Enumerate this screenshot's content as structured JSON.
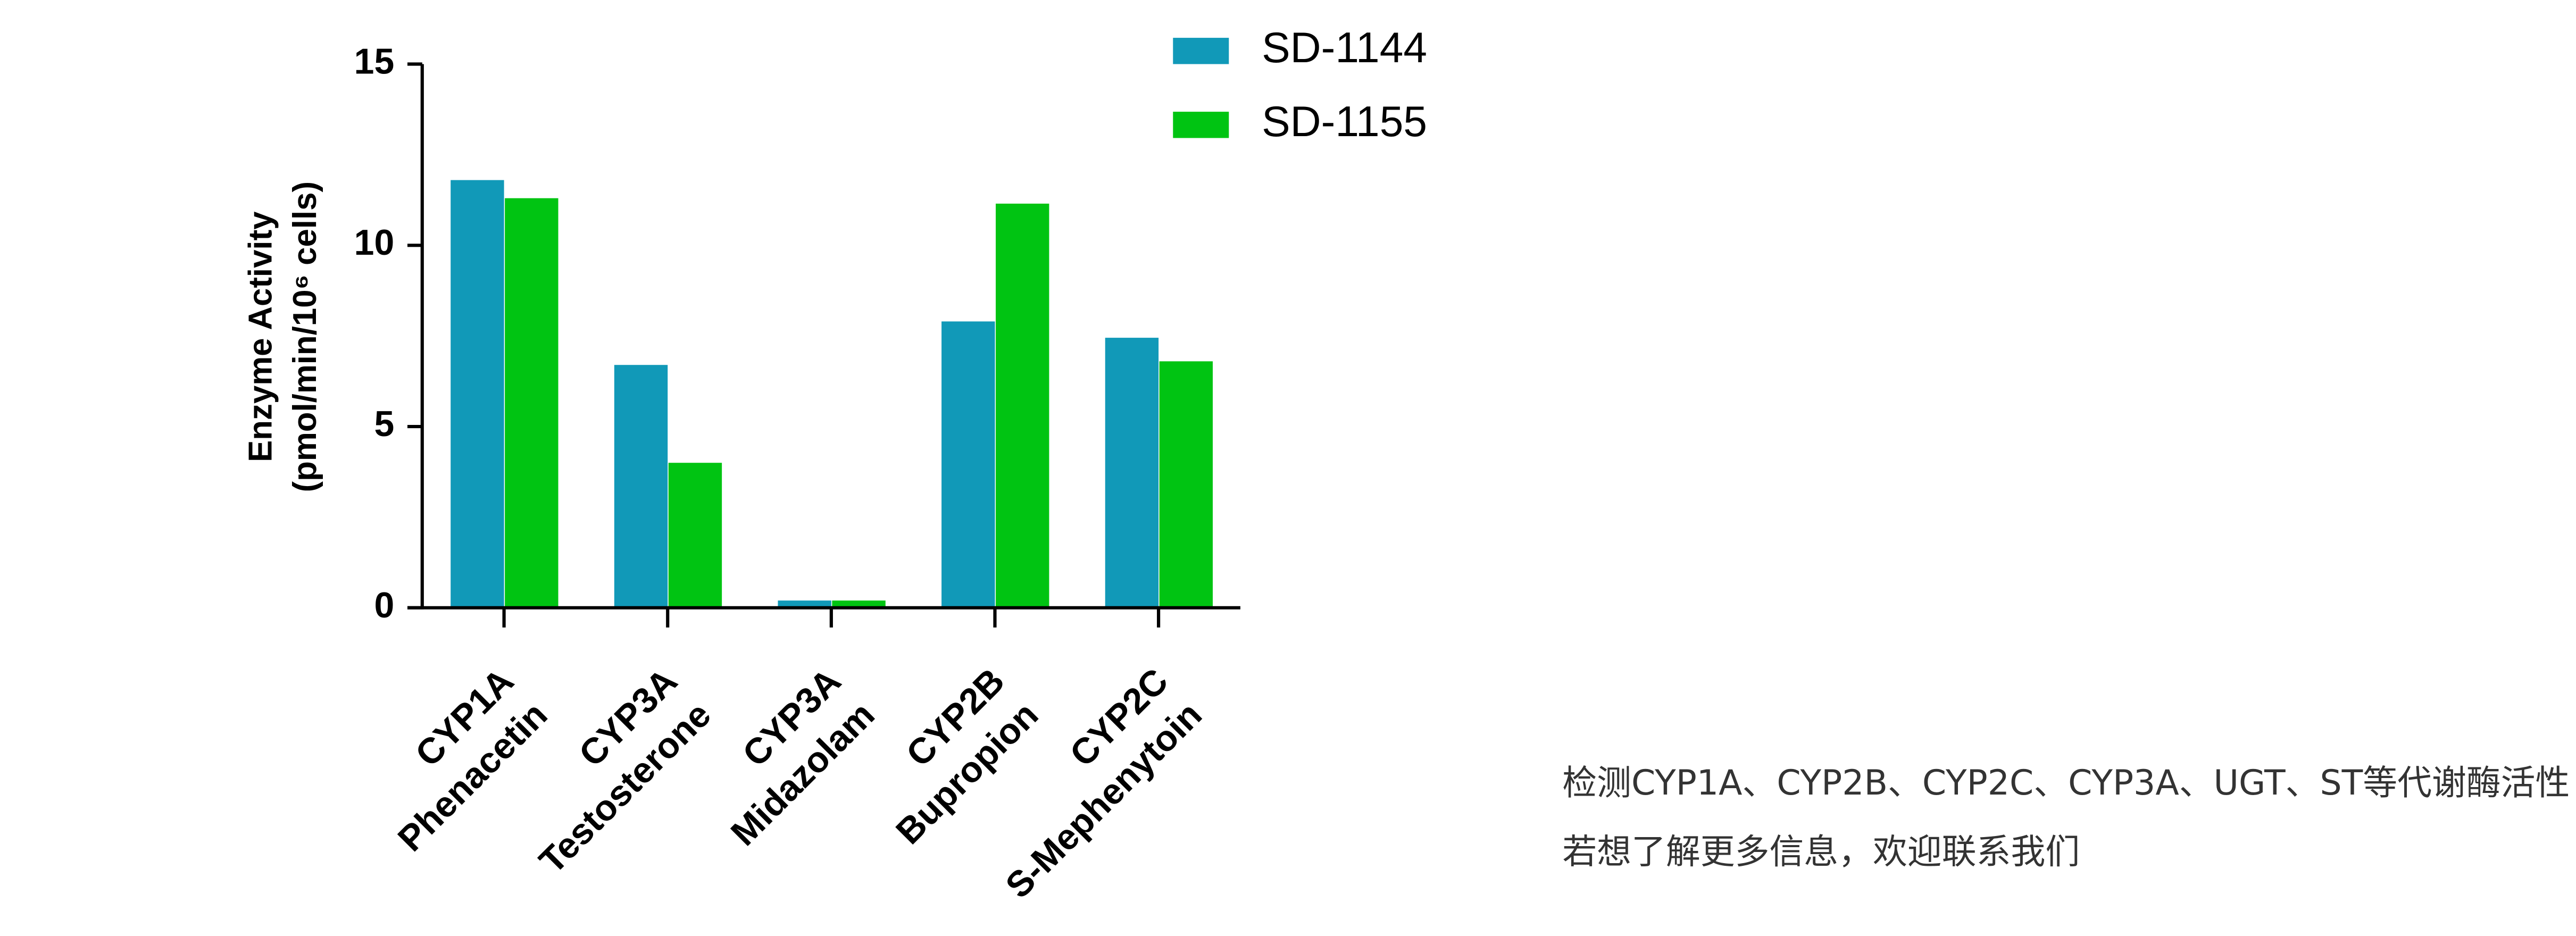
{
  "chart_data": {
    "type": "bar",
    "y_label": [
      "Enzyme Activity",
      "(pmol/min/10⁶ cells)"
    ],
    "categories": [
      [
        "CYP1A",
        "Phenacetin"
      ],
      [
        "CYP3A",
        "Testosterone"
      ],
      [
        "CYP3A",
        "Midazolam"
      ],
      [
        "CYP2B",
        "Bupropion"
      ],
      [
        "CYP2C",
        "S-Mephenytoin"
      ]
    ],
    "series": [
      {
        "name": "SD-1144",
        "color": "#1199b8",
        "values": [
          11.8,
          6.7,
          0.2,
          7.9,
          7.45
        ]
      },
      {
        "name": "SD-1155",
        "color": "#00c412",
        "values": [
          11.3,
          4.0,
          0.2,
          11.15,
          6.8
        ]
      }
    ],
    "ylim": [
      0,
      15
    ],
    "yticks": [
      0,
      5,
      10,
      15
    ],
    "legend": "top-right"
  },
  "footer_text": [
    "检测CYP1A、CYP2B、CYP2C、CYP3A、UGT、ST等代谢酶活性",
    "若想了解更多信息，欢迎联系我们"
  ]
}
